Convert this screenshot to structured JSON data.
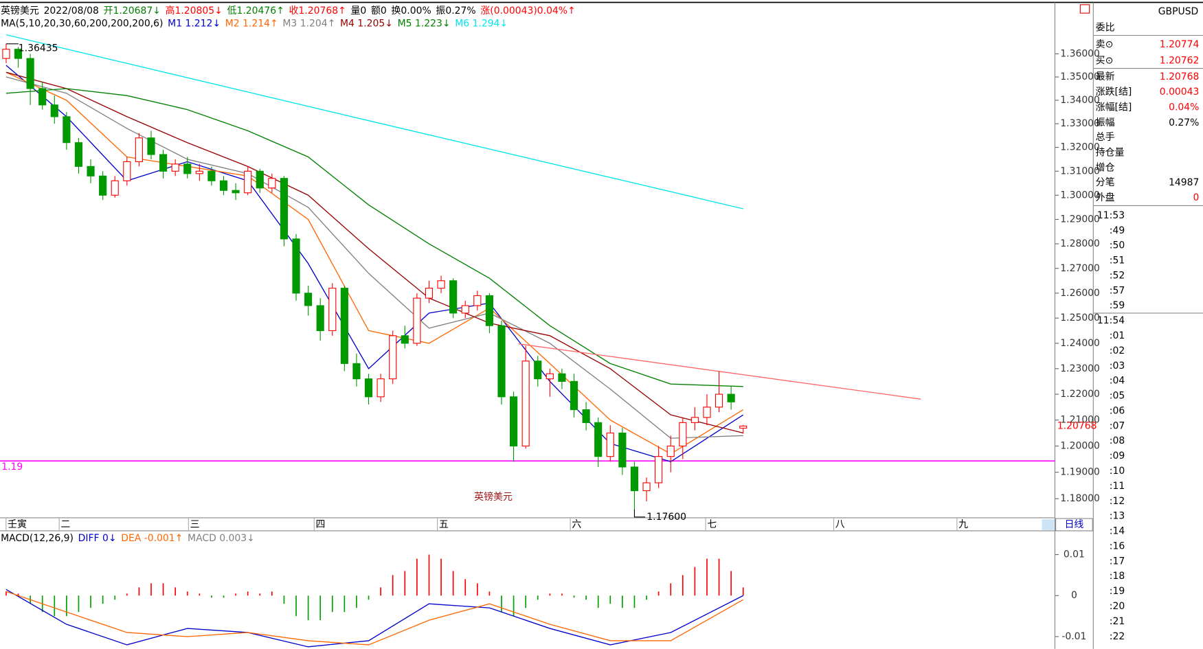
{
  "header": {
    "items": [
      {
        "text": "英镑美元",
        "color": "#000000"
      },
      {
        "text": "2022/08/08",
        "color": "#000000"
      },
      {
        "text": "开1.20687↓",
        "color": "#008000"
      },
      {
        "text": "高1.20805↓",
        "color": "#ff0000"
      },
      {
        "text": "低1.20476↑",
        "color": "#008000"
      },
      {
        "text": "收1.20768↑",
        "color": "#ff0000"
      },
      {
        "text": "量0",
        "color": "#000000"
      },
      {
        "text": "额0",
        "color": "#000000"
      },
      {
        "text": "换0.00%",
        "color": "#000000"
      },
      {
        "text": "振0.27%",
        "color": "#000000"
      },
      {
        "text": "涨(0.00043)0.04%↑",
        "color": "#ff0000"
      }
    ]
  },
  "chart_data": [
    {
      "type": "candlestick",
      "log_scale": true,
      "ylim": [
        1.1737,
        1.3761
      ],
      "xlim": [
        -0.508,
        86.8
      ],
      "yticks": [
        {
          "value": 1.36,
          "label": "1.36000"
        },
        {
          "value": 1.35,
          "label": "1.35000"
        },
        {
          "value": 1.34,
          "label": "1.34000"
        },
        {
          "value": 1.33,
          "label": "1.33000"
        },
        {
          "value": 1.32,
          "label": "1.32000"
        },
        {
          "value": 1.31,
          "label": "1.31000"
        },
        {
          "value": 1.3,
          "label": "1.30000"
        },
        {
          "value": 1.29,
          "label": "1.29000"
        },
        {
          "value": 1.28,
          "label": "1.28000"
        },
        {
          "value": 1.27,
          "label": "1.27000"
        },
        {
          "value": 1.26,
          "label": "1.26000"
        },
        {
          "value": 1.25,
          "label": "1.25000"
        },
        {
          "value": 1.24,
          "label": "1.24000"
        },
        {
          "value": 1.23,
          "label": "1.23000"
        },
        {
          "value": 1.22,
          "label": "1.22000"
        },
        {
          "value": 1.21,
          "label": "1.21000"
        },
        {
          "value": 1.2,
          "label": "1.20000"
        },
        {
          "value": 1.19,
          "label": "1.19000"
        },
        {
          "value": 1.18,
          "label": "1.18000"
        }
      ],
      "xticks": [
        {
          "value": 0.5,
          "label": "壬寅"
        },
        {
          "value": 4.9,
          "label": "二"
        },
        {
          "value": 15.6,
          "label": "三"
        },
        {
          "value": 26,
          "label": "四"
        },
        {
          "value": 36.2,
          "label": "五"
        },
        {
          "value": 47.2,
          "label": "六"
        },
        {
          "value": 58.4,
          "label": "七"
        },
        {
          "value": 69,
          "label": "八"
        },
        {
          "value": 79.2,
          "label": "九"
        }
      ],
      "period": "日线",
      "up_color": "#ff0000",
      "down_color": "#009a00",
      "ohlc": [
        [
          1.358,
          1.36435,
          1.356,
          1.362
        ],
        [
          1.362,
          1.363,
          1.354,
          1.358
        ],
        [
          1.358,
          1.36,
          1.338,
          1.345
        ],
        [
          1.345,
          1.348,
          1.336,
          1.338
        ],
        [
          1.338,
          1.342,
          1.33,
          1.333
        ],
        [
          1.333,
          1.335,
          1.319,
          1.322
        ],
        [
          1.322,
          1.324,
          1.309,
          1.312
        ],
        [
          1.312,
          1.315,
          1.305,
          1.308
        ],
        [
          1.308,
          1.31,
          1.298,
          1.3
        ],
        [
          1.3,
          1.308,
          1.299,
          1.306
        ],
        [
          1.306,
          1.316,
          1.304,
          1.314
        ],
        [
          1.314,
          1.326,
          1.312,
          1.324
        ],
        [
          1.324,
          1.327,
          1.315,
          1.317
        ],
        [
          1.317,
          1.319,
          1.307,
          1.31
        ],
        [
          1.31,
          1.315,
          1.308,
          1.313
        ],
        [
          1.313,
          1.316,
          1.307,
          1.309
        ],
        [
          1.309,
          1.313,
          1.306,
          1.31
        ],
        [
          1.31,
          1.312,
          1.304,
          1.306
        ],
        [
          1.306,
          1.308,
          1.3,
          1.302
        ],
        [
          1.302,
          1.305,
          1.298,
          1.301
        ],
        [
          1.301,
          1.312,
          1.3,
          1.31
        ],
        [
          1.31,
          1.311,
          1.301,
          1.303
        ],
        [
          1.303,
          1.309,
          1.301,
          1.307
        ],
        [
          1.307,
          1.308,
          1.279,
          1.282
        ],
        [
          1.282,
          1.284,
          1.257,
          1.26
        ],
        [
          1.26,
          1.263,
          1.251,
          1.255
        ],
        [
          1.255,
          1.258,
          1.241,
          1.245
        ],
        [
          1.245,
          1.264,
          1.243,
          1.262
        ],
        [
          1.262,
          1.263,
          1.229,
          1.232
        ],
        [
          1.232,
          1.236,
          1.223,
          1.226
        ],
        [
          1.226,
          1.228,
          1.216,
          1.219
        ],
        [
          1.219,
          1.228,
          1.217,
          1.226
        ],
        [
          1.226,
          1.245,
          1.224,
          1.243
        ],
        [
          1.243,
          1.247,
          1.238,
          1.24
        ],
        [
          1.24,
          1.26,
          1.239,
          1.258
        ],
        [
          1.258,
          1.265,
          1.256,
          1.262
        ],
        [
          1.262,
          1.267,
          1.26,
          1.265
        ],
        [
          1.265,
          1.266,
          1.25,
          1.252
        ],
        [
          1.252,
          1.257,
          1.25,
          1.255
        ],
        [
          1.255,
          1.261,
          1.253,
          1.259
        ],
        [
          1.259,
          1.26,
          1.244,
          1.247
        ],
        [
          1.247,
          1.249,
          1.216,
          1.219
        ],
        [
          1.219,
          1.221,
          1.194,
          1.2
        ],
        [
          1.2,
          1.239,
          1.199,
          1.233
        ],
        [
          1.233,
          1.235,
          1.223,
          1.226
        ],
        [
          1.226,
          1.23,
          1.219,
          1.228
        ],
        [
          1.228,
          1.23,
          1.222,
          1.225
        ],
        [
          1.225,
          1.228,
          1.211,
          1.214
        ],
        [
          1.214,
          1.217,
          1.206,
          1.209
        ],
        [
          1.209,
          1.211,
          1.192,
          1.196
        ],
        [
          1.196,
          1.208,
          1.194,
          1.205
        ],
        [
          1.205,
          1.207,
          1.189,
          1.192
        ],
        [
          1.192,
          1.194,
          1.176,
          1.183
        ],
        [
          1.183,
          1.188,
          1.179,
          1.186
        ],
        [
          1.186,
          1.2,
          1.184,
          1.196
        ],
        [
          1.196,
          1.204,
          1.19,
          1.2
        ],
        [
          1.2,
          1.211,
          1.195,
          1.209
        ],
        [
          1.209,
          1.215,
          1.206,
          1.211
        ],
        [
          1.211,
          1.22,
          1.208,
          1.215
        ],
        [
          1.215,
          1.229,
          1.213,
          1.22
        ],
        [
          1.22,
          1.223,
          1.214,
          1.217
        ],
        [
          1.20687,
          1.20805,
          1.20476,
          1.20768
        ]
      ],
      "legend": [
        {
          "text": "MA(5,10,20,30,60,200,200,200,6)",
          "color": "#000000"
        },
        {
          "text": "M1 1.212↓",
          "color": "#0000cc"
        },
        {
          "text": "M2 1.214↑",
          "color": "#ff6600"
        },
        {
          "text": "M3 1.204↑",
          "color": "#808080"
        },
        {
          "text": "M4 1.205↓",
          "color": "#990000"
        },
        {
          "text": "M5 1.223↓",
          "color": "#008000"
        },
        {
          "text": "M6 1.294↓",
          "color": "#00e5ee"
        }
      ],
      "series": [
        {
          "color": "#0000cc",
          "x": [
            0,
            5,
            10,
            15,
            20,
            25,
            30,
            35,
            40,
            45,
            50,
            55,
            61
          ],
          "values": [
            1.355,
            1.333,
            1.306,
            1.314,
            1.306,
            1.272,
            1.23,
            1.252,
            1.256,
            1.225,
            1.201,
            1.194,
            1.212
          ]
        },
        {
          "color": "#ff6600",
          "x": [
            0,
            5,
            10,
            15,
            20,
            25,
            30,
            35,
            40,
            45,
            50,
            55,
            61
          ],
          "values": [
            1.352,
            1.34,
            1.316,
            1.312,
            1.308,
            1.29,
            1.245,
            1.24,
            1.254,
            1.232,
            1.21,
            1.197,
            1.214
          ]
        },
        {
          "color": "#808080",
          "x": [
            0,
            5,
            10,
            15,
            20,
            25,
            30,
            35,
            40,
            45,
            50,
            55,
            61
          ],
          "values": [
            1.35,
            1.343,
            1.328,
            1.315,
            1.309,
            1.295,
            1.268,
            1.246,
            1.252,
            1.24,
            1.222,
            1.203,
            1.204
          ]
        },
        {
          "color": "#990000",
          "x": [
            0,
            5,
            10,
            15,
            20,
            25,
            30,
            35,
            40,
            45,
            50,
            55,
            61
          ],
          "values": [
            1.352,
            1.345,
            1.333,
            1.322,
            1.312,
            1.3,
            1.278,
            1.258,
            1.248,
            1.243,
            1.23,
            1.212,
            1.205
          ]
        },
        {
          "color": "#008000",
          "x": [
            0,
            5,
            10,
            15,
            20,
            25,
            30,
            35,
            40,
            45,
            50,
            55,
            61
          ],
          "values": [
            1.343,
            1.345,
            1.342,
            1.336,
            1.327,
            1.316,
            1.296,
            1.28,
            1.266,
            1.247,
            1.232,
            1.224,
            1.223
          ]
        },
        {
          "color": "#00e5ee",
          "x": [
            0,
            30,
            61
          ],
          "values": [
            1.3683,
            1.3313,
            1.2944
          ]
        }
      ],
      "high_label": 1.36435,
      "low_label": {
        "value": 1.176,
        "label": "1.17600"
      },
      "hline": {
        "value": 1.1943,
        "label": "1.19",
        "color": "#ff00ff"
      },
      "trendline": {
        "color": "#ff6666",
        "x": [
          42.4,
          75.7
        ],
        "values": [
          1.2398,
          1.2181
        ]
      },
      "last_price": 1.20768,
      "watermark": "英镑美元"
    },
    {
      "type": "macd",
      "ylim": [
        -0.013,
        0.0158
      ],
      "xlim": [
        -0.508,
        86.8
      ],
      "yticks": [
        0.01,
        0,
        -0.01
      ],
      "up_color": "#ff0000",
      "down_color": "#00a000",
      "legend": [
        {
          "text": "MACD(12,26,9)",
          "color": "#000000"
        },
        {
          "text": "DIFF 0↓",
          "color": "#0000cc"
        },
        {
          "text": "DEA -0.001↑",
          "color": "#ff6600"
        },
        {
          "text": "MACD 0.003↓",
          "color": "#808080"
        }
      ],
      "histogram": [
        0.001,
        0.0005,
        -0.002,
        -0.004,
        -0.005,
        -0.005,
        -0.004,
        -0.003,
        -0.002,
        -0.001,
        0.0005,
        0.002,
        0.003,
        0.003,
        0.002,
        0.001,
        0.0005,
        -0.0005,
        -0.0005,
        0.0005,
        0.001,
        0.0005,
        0.001,
        -0.002,
        -0.005,
        -0.006,
        -0.006,
        -0.004,
        -0.004,
        -0.003,
        -0.001,
        0.002,
        0.005,
        0.006,
        0.009,
        0.01,
        0.009,
        0.006,
        0.004,
        0.003,
        0.001,
        -0.004,
        -0.005,
        -0.003,
        -0.001,
        0.0005,
        0.0005,
        -0.0005,
        -0.001,
        -0.003,
        -0.002,
        -0.003,
        -0.003,
        -0.001,
        0.001,
        0.003,
        0.005,
        0.007,
        0.009,
        0.009,
        0.006,
        0.002
      ],
      "series": [
        {
          "color": "#0000cc",
          "x": [
            0,
            5,
            10,
            15,
            20,
            25,
            30,
            35,
            40,
            45,
            50,
            55,
            61
          ],
          "values": [
            0.0015,
            -0.007,
            -0.012,
            -0.008,
            -0.009,
            -0.0125,
            -0.011,
            -0.002,
            -0.003,
            -0.008,
            -0.012,
            -0.009,
            0
          ]
        },
        {
          "color": "#ff6600",
          "x": [
            0,
            5,
            10,
            15,
            20,
            25,
            30,
            35,
            40,
            45,
            50,
            55,
            61
          ],
          "values": [
            0.001,
            -0.004,
            -0.009,
            -0.01,
            -0.009,
            -0.011,
            -0.012,
            -0.006,
            -0.002,
            -0.007,
            -0.011,
            -0.011,
            -0.001
          ]
        }
      ]
    }
  ],
  "side_panel": {
    "symbol": "GBPUSD",
    "rows": [
      {
        "label": "委比"
      },
      {
        "label": "卖⊙",
        "value": "1.20774",
        "color": "#ff0000"
      },
      {
        "label": "买⊙",
        "value": "1.20762",
        "color": "#ff0000"
      },
      {
        "label": "最新",
        "value": "1.20768",
        "color": "#ff0000"
      },
      {
        "label": "涨跌[结]",
        "value": "0.00043",
        "color": "#ff0000"
      },
      {
        "label": "涨幅[结]",
        "value": "0.04%",
        "color": "#ff0000"
      },
      {
        "label": "振幅",
        "value": "0.27%",
        "color": "#000000"
      },
      {
        "label": "总手"
      },
      {
        "label": "持仓量"
      },
      {
        "label": "增仓"
      },
      {
        "label": "分笔",
        "value": "14987",
        "color": "#000000"
      },
      {
        "label": "外盘",
        "value": "0",
        "color": "#ff0000"
      }
    ],
    "ticks": [
      "11:53",
      ":49",
      ":50",
      ":51",
      ":52",
      ":57",
      ":59",
      "11:54",
      ":01",
      ":02",
      ":03",
      ":04",
      ":05",
      ":06",
      ":07",
      ":08",
      ":09",
      ":10",
      ":11",
      ":12",
      ":13",
      ":14",
      ":16",
      ":17",
      ":18",
      ":19",
      ":20",
      ":21",
      ":22"
    ]
  }
}
